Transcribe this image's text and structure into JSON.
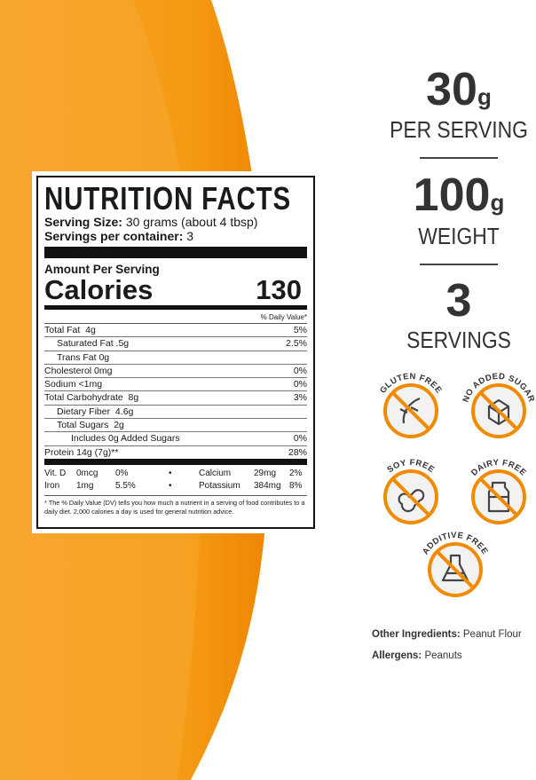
{
  "nutrition_facts": {
    "title": "NUTRITION FACTS",
    "serving_size_label": "Serving Size:",
    "serving_size": "30 grams (about 4 tbsp)",
    "servings_label": "Servings per container:",
    "servings": "3",
    "amount_per_serving": "Amount Per Serving",
    "calories_label": "Calories",
    "calories": 130,
    "daily_value_header": "% Daily Value*",
    "rows": [
      {
        "label": "Total Fat  4g",
        "dv": "5%"
      },
      {
        "label": "Saturated Fat .5g",
        "dv": "2.5%"
      },
      {
        "label": "Trans Fat 0g"
      },
      {
        "label": "Cholesterol 0mg",
        "dv": "0%"
      },
      {
        "label": "Sodium <1mg",
        "dv": "0%"
      },
      {
        "label": "Total Carbohydrate  8g",
        "dv": "3%"
      },
      {
        "label": "Dietary Fiber  4.6g"
      },
      {
        "label": "Total Sugars  2g"
      },
      {
        "label": "Includes 0g Added Sugars",
        "dv": "0%"
      },
      {
        "label": "Protein 14g (7g)**",
        "dv": "28%"
      }
    ],
    "minerals": [
      [
        {
          "name": "Vit. D",
          "amount": "0mcg",
          "dv": "0%"
        },
        {
          "name": "Calcium",
          "amount": "29mg",
          "dv": "2%"
        }
      ],
      [
        {
          "name": "Iron",
          "amount": "1mg",
          "dv": "5.5%"
        },
        {
          "name": "Potassium",
          "amount": "384mg",
          "dv": "8%"
        }
      ]
    ],
    "separator": "•",
    "footnote": "* The % Daily Value (DV) tells you how much a nutrient in a serving of food contributes to a daily diet. 2,000 calories a day is used for general nutrition advice."
  },
  "stats": [
    {
      "amount": "30",
      "unit": "g",
      "label": "PER SERVING"
    },
    {
      "amount": "100",
      "unit": "g",
      "label": "WEIGHT"
    },
    {
      "amount": "3",
      "label": "SERVINGS"
    }
  ],
  "badges": [
    "GLUTEN FREE",
    "NO ADDED SUGAR",
    "SOY FREE",
    "DAIRY FREE",
    "ADDITIVE FREE"
  ],
  "ingredients": {
    "other_label": "Other Ingredients:",
    "other": "Peanut Flour",
    "allergens_label": "Allergens:",
    "allergens": "Peanuts"
  }
}
